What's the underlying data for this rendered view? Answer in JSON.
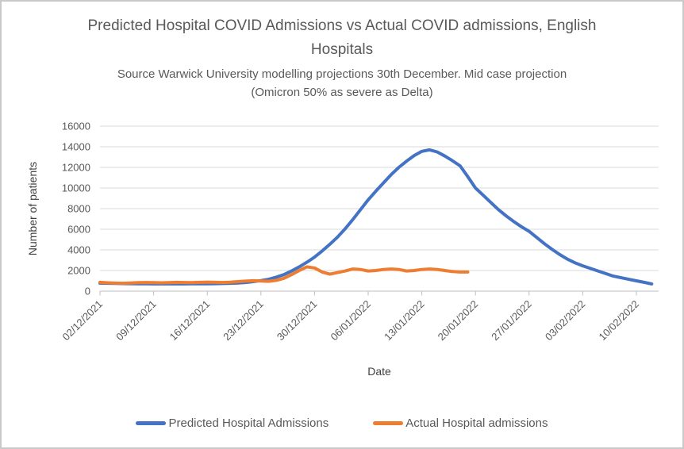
{
  "chart_data": {
    "type": "line",
    "title": "Predicted Hospital COVID Admissions vs Actual COVID admissions, English Hospitals",
    "subtitle": "Source Warwick University modelling projections 30th December. Mid case projection (Omicron 50% as severe as Delta)",
    "xlabel": "Date",
    "ylabel": "Number of patients",
    "ylim": [
      0,
      16000
    ],
    "ytick_step": 2000,
    "grid": "horizontal",
    "legend_position": "bottom",
    "x_tick_labels": [
      "02/12/2021",
      "09/12/2021",
      "16/12/2021",
      "23/12/2021",
      "30/12/2021",
      "06/01/2022",
      "13/01/2022",
      "20/01/2022",
      "27/01/2022",
      "03/02/2022",
      "10/02/2022"
    ],
    "x_tick_interval_days": 7,
    "x_start_date": "02/12/2021",
    "series": [
      {
        "name": "Predicted Hospital Admissions",
        "color": "#4472C4",
        "start_date": "02/12/2021",
        "end_date": "12/02/2022",
        "values": [
          780,
          760,
          745,
          730,
          720,
          710,
          705,
          700,
          700,
          700,
          700,
          700,
          705,
          710,
          715,
          725,
          740,
          760,
          790,
          840,
          920,
          1020,
          1150,
          1350,
          1600,
          1950,
          2350,
          2800,
          3300,
          3900,
          4550,
          5250,
          6050,
          6950,
          7900,
          8850,
          9700,
          10500,
          11300,
          12000,
          12600,
          13150,
          13550,
          13700,
          13500,
          13100,
          12650,
          12150,
          11100,
          10000,
          9300,
          8600,
          7900,
          7300,
          6750,
          6250,
          5800,
          5200,
          4600,
          4050,
          3550,
          3100,
          2750,
          2450,
          2200,
          1950,
          1700,
          1450,
          1300,
          1150,
          1000,
          850,
          700
        ]
      },
      {
        "name": "Actual Hospital admissions",
        "color": "#ED7D31",
        "start_date": "02/12/2021",
        "end_date": "19/01/2022",
        "values": [
          850,
          810,
          780,
          760,
          790,
          820,
          840,
          820,
          805,
          830,
          855,
          835,
          820,
          850,
          875,
          855,
          840,
          865,
          920,
          970,
          1010,
          980,
          950,
          1050,
          1250,
          1600,
          2000,
          2350,
          2250,
          1850,
          1650,
          1800,
          1950,
          2150,
          2100,
          1950,
          2000,
          2100,
          2150,
          2100,
          1950,
          2000,
          2100,
          2150,
          2100,
          2000,
          1900,
          1850,
          1850
        ]
      }
    ]
  },
  "colors": {
    "gridline": "#D9D9D9",
    "axis_line": "#BFBFBF",
    "tick_text": "#595959",
    "title_text": "#595959"
  }
}
